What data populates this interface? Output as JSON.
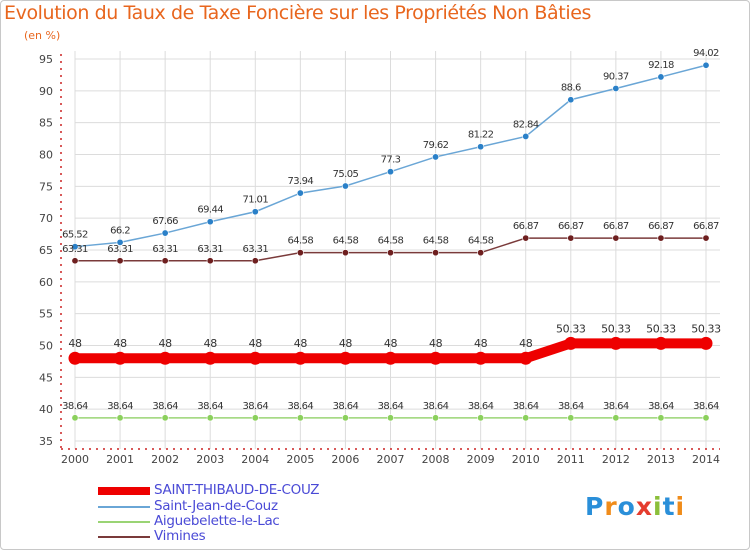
{
  "title": "Evolution du Taux de Taxe Foncière sur les Propriétés Non Bâties",
  "unit": "(en %)",
  "logo": {
    "text": "Proxiti",
    "colors": [
      "#2a8fd9",
      "#f08c1a",
      "#2a8fd9",
      "#e53c2e",
      "#8bbf3a",
      "#2a8fd9",
      "#f08c1a"
    ]
  },
  "chart_data": {
    "type": "line",
    "x": [
      2000,
      2001,
      2002,
      2003,
      2004,
      2005,
      2006,
      2007,
      2008,
      2009,
      2010,
      2011,
      2012,
      2013,
      2014
    ],
    "ylim": [
      35,
      95
    ],
    "yticks": [
      35,
      40,
      45,
      50,
      55,
      60,
      65,
      70,
      75,
      80,
      85,
      90,
      95
    ],
    "grid": true,
    "series": [
      {
        "name": "SAINT-THIBAUD-DE-COUZ",
        "color": "#ee0000",
        "style": "thick",
        "values": [
          48,
          48,
          48,
          48,
          48,
          48,
          48,
          48,
          48,
          48,
          48,
          50.33,
          50.33,
          50.33,
          50.33
        ],
        "labels": [
          "48",
          "48",
          "48",
          "48",
          "48",
          "48",
          "48",
          "48",
          "48",
          "48",
          "48",
          "50.33",
          "50.33",
          "50.33",
          "50.33"
        ]
      },
      {
        "name": "Saint-Jean-de-Couz",
        "color": "#6aa6d6",
        "marker": "#2a80c8",
        "values": [
          65.52,
          66.2,
          67.66,
          69.44,
          71.01,
          73.94,
          75.05,
          77.3,
          79.62,
          81.22,
          82.84,
          88.6,
          90.37,
          92.18,
          94.02
        ],
        "labels": [
          "65.52",
          "66.2",
          "67.66",
          "69.44",
          "71.01",
          "73.94",
          "75.05",
          "77.3",
          "79.62",
          "81.22",
          "82.84",
          "88.6",
          "90.37",
          "92.18",
          "94.02"
        ]
      },
      {
        "name": "Aiguebelette-le-Lac",
        "color": "#9ad474",
        "marker": "#8bd05c",
        "values": [
          38.64,
          38.64,
          38.64,
          38.64,
          38.64,
          38.64,
          38.64,
          38.64,
          38.64,
          38.64,
          38.64,
          38.64,
          38.64,
          38.64,
          38.64
        ],
        "labels": [
          "38.64",
          "38.64",
          "38.64",
          "38.64",
          "38.64",
          "38.64",
          "38.64",
          "38.64",
          "38.64",
          "38.64",
          "38.64",
          "38.64",
          "38.64",
          "38.64",
          "38.64"
        ]
      },
      {
        "name": "Vimines",
        "color": "#7a3a3a",
        "marker": "#6e1f1f",
        "values": [
          63.31,
          63.31,
          63.31,
          63.31,
          63.31,
          64.58,
          64.58,
          64.58,
          64.58,
          64.58,
          66.87,
          66.87,
          66.87,
          66.87,
          66.87
        ],
        "labels": [
          "63.31",
          "63.31",
          "63.31",
          "63.31",
          "63.31",
          "64.58",
          "64.58",
          "64.58",
          "64.58",
          "64.58",
          "66.87",
          "66.87",
          "66.87",
          "66.87",
          "66.87"
        ]
      }
    ]
  }
}
